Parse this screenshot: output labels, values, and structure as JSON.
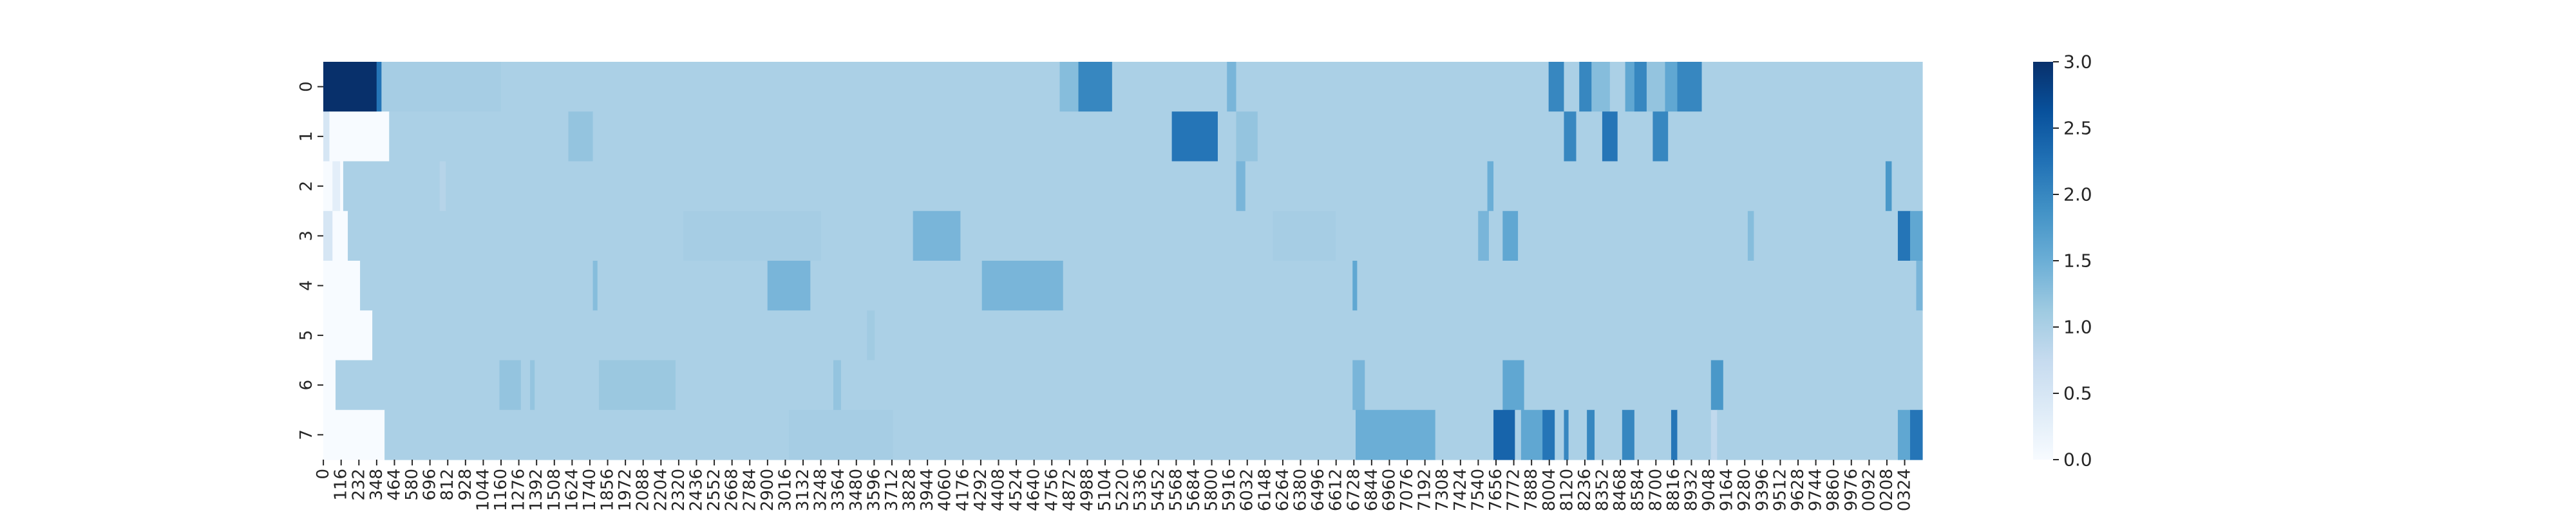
{
  "chart_data": {
    "type": "heatmap",
    "title": "",
    "xlabel": "",
    "ylabel": "",
    "y_categories": [
      "0",
      "1",
      "2",
      "3",
      "4",
      "5",
      "6",
      "7"
    ],
    "x_tick_labels": [
      "0",
      "116",
      "232",
      "348",
      "464",
      "580",
      "696",
      "812",
      "928",
      "1044",
      "1160",
      "1276",
      "1392",
      "1508",
      "1624",
      "1740",
      "1856",
      "1972",
      "2088",
      "2204",
      "2320",
      "2436",
      "2552",
      "2668",
      "2784",
      "2900",
      "3016",
      "3132",
      "3248",
      "3364",
      "3480",
      "3596",
      "3712",
      "3828",
      "3944",
      "4060",
      "4176",
      "4292",
      "4408",
      "4524",
      "4640",
      "4756",
      "4872",
      "4988",
      "5104",
      "5220",
      "5336",
      "5452",
      "5568",
      "5684",
      "5800",
      "5916",
      "6032",
      "6148",
      "6264",
      "6380",
      "6496",
      "6612",
      "6728",
      "6844",
      "6960",
      "7076",
      "7192",
      "7308",
      "7424",
      "7540",
      "7656",
      "7772",
      "7888",
      "8004",
      "8120",
      "8236",
      "8352",
      "8468",
      "8584",
      "8700",
      "8816",
      "8932",
      "9048",
      "9164",
      "9280",
      "9396",
      "9512",
      "9628",
      "9744",
      "9860",
      "9976",
      "0092",
      "0208",
      "0324"
    ],
    "x_range": [
      0,
      10440
    ],
    "value_range": [
      0,
      3
    ],
    "colormap": "Blues",
    "colorbar_ticks": [
      "0.0",
      "0.5",
      "1.0",
      "1.5",
      "2.0",
      "2.5",
      "3.0"
    ],
    "base_value": 1.0,
    "rows": [
      {
        "row": "0",
        "segments": [
          [
            0,
            348,
            3.0
          ],
          [
            348,
            380,
            2.2
          ],
          [
            380,
            1160,
            1.05
          ],
          [
            1160,
            2900,
            1.0
          ],
          [
            2900,
            4808,
            1.0
          ],
          [
            4808,
            4930,
            1.3
          ],
          [
            4930,
            5150,
            2.0
          ],
          [
            5150,
            5350,
            1.0
          ],
          [
            5350,
            5900,
            1.0
          ],
          [
            5900,
            5960,
            1.4
          ],
          [
            5960,
            8000,
            1.0
          ],
          [
            8000,
            8100,
            2.0
          ],
          [
            8100,
            8200,
            1.0
          ],
          [
            8200,
            8280,
            2.0
          ],
          [
            8280,
            8400,
            1.3
          ],
          [
            8400,
            8500,
            1.0
          ],
          [
            8500,
            8560,
            1.6
          ],
          [
            8560,
            8640,
            2.0
          ],
          [
            8640,
            8760,
            1.2
          ],
          [
            8760,
            8840,
            1.6
          ],
          [
            8840,
            9000,
            2.0
          ],
          [
            9000,
            10440,
            1.0
          ]
        ]
      },
      {
        "row": "1",
        "segments": [
          [
            0,
            40,
            0.5
          ],
          [
            40,
            430,
            0.0
          ],
          [
            430,
            520,
            1.0
          ],
          [
            520,
            1600,
            1.0
          ],
          [
            1600,
            1760,
            1.2
          ],
          [
            1760,
            4800,
            1.0
          ],
          [
            4800,
            5540,
            1.0
          ],
          [
            5540,
            5840,
            2.2
          ],
          [
            5840,
            5960,
            1.0
          ],
          [
            5960,
            6100,
            1.2
          ],
          [
            6100,
            8100,
            1.0
          ],
          [
            8100,
            8180,
            2.0
          ],
          [
            8180,
            8350,
            1.0
          ],
          [
            8350,
            8450,
            2.2
          ],
          [
            8450,
            8680,
            1.0
          ],
          [
            8680,
            8780,
            2.0
          ],
          [
            8780,
            10440,
            1.0
          ]
        ]
      },
      {
        "row": "2",
        "segments": [
          [
            0,
            60,
            0.0
          ],
          [
            60,
            110,
            0.3
          ],
          [
            110,
            130,
            0.0
          ],
          [
            130,
            760,
            1.0
          ],
          [
            760,
            800,
            0.9
          ],
          [
            800,
            5960,
            1.0
          ],
          [
            5960,
            6020,
            1.4
          ],
          [
            6020,
            7600,
            1.0
          ],
          [
            7600,
            7640,
            1.5
          ],
          [
            7640,
            10200,
            1.0
          ],
          [
            10200,
            10240,
            1.8
          ],
          [
            10240,
            10440,
            1.0
          ]
        ]
      },
      {
        "row": "3",
        "segments": [
          [
            0,
            60,
            0.5
          ],
          [
            60,
            160,
            0.0
          ],
          [
            160,
            1200,
            1.0
          ],
          [
            1200,
            2350,
            1.0
          ],
          [
            2350,
            3250,
            1.05
          ],
          [
            3250,
            3850,
            1.0
          ],
          [
            3850,
            4160,
            1.4
          ],
          [
            4160,
            6200,
            1.0
          ],
          [
            6200,
            6610,
            1.05
          ],
          [
            6610,
            7540,
            1.0
          ],
          [
            7540,
            7610,
            1.4
          ],
          [
            7610,
            7700,
            1.0
          ],
          [
            7700,
            7800,
            1.6
          ],
          [
            7800,
            9300,
            1.0
          ],
          [
            9300,
            9340,
            1.3
          ],
          [
            9340,
            10280,
            1.0
          ],
          [
            10280,
            10360,
            2.2
          ],
          [
            10360,
            10440,
            1.6
          ]
        ]
      },
      {
        "row": "4",
        "segments": [
          [
            0,
            240,
            0.0
          ],
          [
            240,
            1760,
            1.0
          ],
          [
            1760,
            1790,
            1.3
          ],
          [
            1790,
            2900,
            1.0
          ],
          [
            2900,
            3180,
            1.4
          ],
          [
            3180,
            4300,
            1.0
          ],
          [
            4300,
            4830,
            1.4
          ],
          [
            4830,
            6720,
            1.0
          ],
          [
            6720,
            6750,
            1.6
          ],
          [
            6750,
            10400,
            1.0
          ],
          [
            10400,
            10440,
            1.4
          ]
        ]
      },
      {
        "row": "5",
        "segments": [
          [
            0,
            320,
            0.0
          ],
          [
            320,
            3550,
            1.0
          ],
          [
            3550,
            3600,
            1.1
          ],
          [
            3600,
            10440,
            1.0
          ]
        ]
      },
      {
        "row": "6",
        "segments": [
          [
            0,
            80,
            0.0
          ],
          [
            80,
            1150,
            1.0
          ],
          [
            1150,
            1290,
            1.2
          ],
          [
            1290,
            1350,
            1.0
          ],
          [
            1350,
            1380,
            1.2
          ],
          [
            1380,
            1800,
            1.0
          ],
          [
            1800,
            2300,
            1.15
          ],
          [
            2300,
            3330,
            1.0
          ],
          [
            3330,
            3380,
            1.2
          ],
          [
            3380,
            6720,
            1.0
          ],
          [
            6720,
            6800,
            1.4
          ],
          [
            6800,
            7700,
            1.0
          ],
          [
            7700,
            7840,
            1.6
          ],
          [
            7840,
            9060,
            1.0
          ],
          [
            9060,
            9140,
            1.8
          ],
          [
            9140,
            10440,
            1.0
          ]
        ]
      },
      {
        "row": "7",
        "segments": [
          [
            0,
            400,
            0.0
          ],
          [
            400,
            1160,
            1.0
          ],
          [
            1160,
            3040,
            1.0
          ],
          [
            3040,
            3720,
            1.05
          ],
          [
            3720,
            6740,
            1.0
          ],
          [
            6740,
            6800,
            1.5
          ],
          [
            6800,
            7260,
            1.5
          ],
          [
            7260,
            7640,
            1.0
          ],
          [
            7640,
            7780,
            2.4
          ],
          [
            7780,
            7820,
            1.0
          ],
          [
            7820,
            7960,
            1.6
          ],
          [
            7960,
            8040,
            2.2
          ],
          [
            8040,
            8100,
            1.0
          ],
          [
            8100,
            8130,
            2.0
          ],
          [
            8130,
            8250,
            1.0
          ],
          [
            8250,
            8300,
            2.0
          ],
          [
            8300,
            8480,
            1.0
          ],
          [
            8480,
            8560,
            2.0
          ],
          [
            8560,
            8800,
            1.0
          ],
          [
            8800,
            8840,
            2.2
          ],
          [
            8840,
            9060,
            1.0
          ],
          [
            9060,
            9100,
            0.8
          ],
          [
            9100,
            10100,
            1.0
          ],
          [
            10100,
            10280,
            1.0
          ],
          [
            10280,
            10360,
            1.6
          ],
          [
            10360,
            10440,
            2.2
          ]
        ]
      }
    ]
  }
}
